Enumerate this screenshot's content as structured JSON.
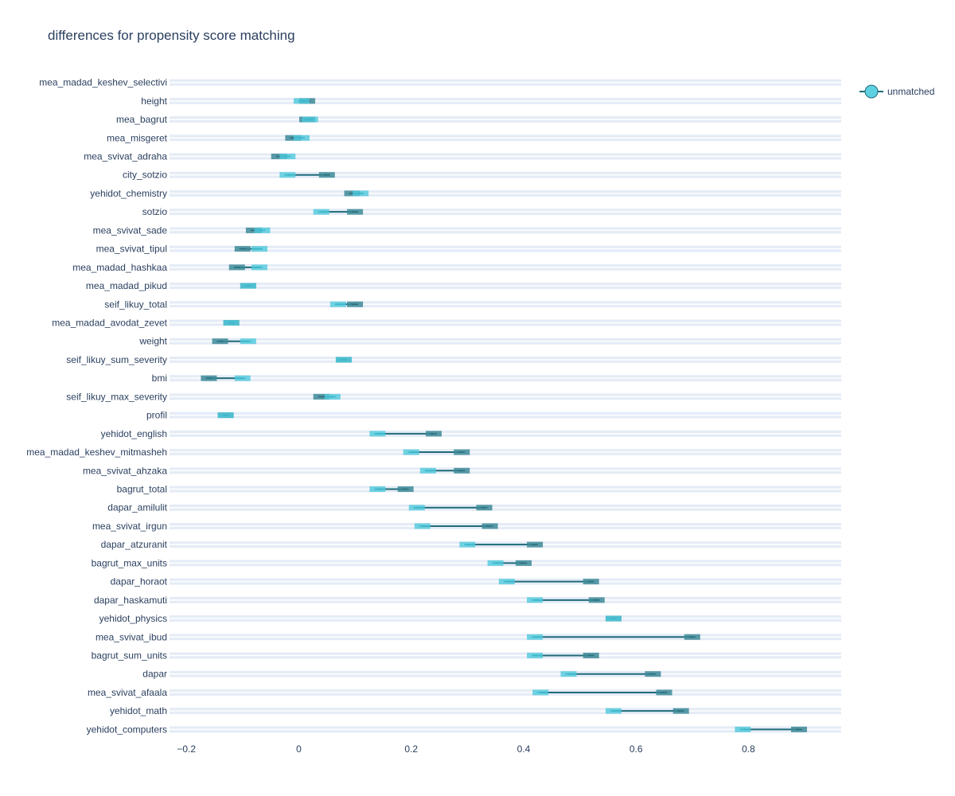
{
  "chart_data": {
    "type": "dumbbell",
    "title": "differences for propensity score matching",
    "xlabel": "",
    "ylabel": "",
    "xlim": [
      -0.23,
      0.965
    ],
    "xticks": [
      -0.2,
      0,
      0.2,
      0.4,
      0.6,
      0.8
    ],
    "xtick_labels": [
      "−0.2",
      "0",
      "0.2",
      "0.4",
      "0.6",
      "0.8"
    ],
    "grid": true,
    "legend": {
      "position": "top-right",
      "entries": [
        {
          "name": "unmatched",
          "color": "#5fd0e0"
        }
      ]
    },
    "colors": {
      "unmatched": "#4fc9dc",
      "matched": "#3d8a98",
      "connector": "#1f6b7a",
      "grid": "#e5ecf6"
    },
    "rows": [
      {
        "label": "mea_madad_keshev_selectivi",
        "unmatched": null,
        "matched": null
      },
      {
        "label": "height",
        "unmatched": 0.005,
        "matched": 0.015
      },
      {
        "label": "mea_bagrut",
        "unmatched": 0.02,
        "matched": 0.015
      },
      {
        "label": "mea_misgeret",
        "unmatched": 0.005,
        "matched": -0.01
      },
      {
        "label": "mea_svivat_adraha",
        "unmatched": -0.02,
        "matched": -0.035
      },
      {
        "label": "city_sotzio",
        "unmatched": -0.02,
        "matched": 0.05
      },
      {
        "label": "yehidot_chemistry",
        "unmatched": 0.11,
        "matched": 0.095
      },
      {
        "label": "sotzio",
        "unmatched": 0.04,
        "matched": 0.1
      },
      {
        "label": "mea_svivat_sade",
        "unmatched": -0.065,
        "matched": -0.08
      },
      {
        "label": "mea_svivat_tipul",
        "unmatched": -0.07,
        "matched": -0.1
      },
      {
        "label": "mea_madad_hashkaa",
        "unmatched": -0.07,
        "matched": -0.11
      },
      {
        "label": "mea_madad_pikud",
        "unmatched": -0.09,
        "matched": -0.09
      },
      {
        "label": "seif_likuy_total",
        "unmatched": 0.07,
        "matched": 0.1
      },
      {
        "label": "mea_madad_avodat_zevet",
        "unmatched": -0.12,
        "matched": -0.12
      },
      {
        "label": "weight",
        "unmatched": -0.09,
        "matched": -0.14
      },
      {
        "label": "seif_likuy_sum_severity",
        "unmatched": 0.08,
        "matched": 0.08
      },
      {
        "label": "bmi",
        "unmatched": -0.1,
        "matched": -0.16
      },
      {
        "label": "seif_likuy_max_severity",
        "unmatched": 0.06,
        "matched": 0.04
      },
      {
        "label": "profil",
        "unmatched": -0.13,
        "matched": -0.13
      },
      {
        "label": "yehidot_english",
        "unmatched": 0.14,
        "matched": 0.24
      },
      {
        "label": "mea_madad_keshev_mitmasheh",
        "unmatched": 0.2,
        "matched": 0.29
      },
      {
        "label": "mea_svivat_ahzaka",
        "unmatched": 0.23,
        "matched": 0.29
      },
      {
        "label": "bagrut_total",
        "unmatched": 0.14,
        "matched": 0.19
      },
      {
        "label": "dapar_amilulit",
        "unmatched": 0.21,
        "matched": 0.33
      },
      {
        "label": "mea_svivat_irgun",
        "unmatched": 0.22,
        "matched": 0.34
      },
      {
        "label": "dapar_atzuranit",
        "unmatched": 0.3,
        "matched": 0.42
      },
      {
        "label": "bagrut_max_units",
        "unmatched": 0.35,
        "matched": 0.4
      },
      {
        "label": "dapar_horaot",
        "unmatched": 0.37,
        "matched": 0.52
      },
      {
        "label": "dapar_haskamuti",
        "unmatched": 0.42,
        "matched": 0.53
      },
      {
        "label": "yehidot_physics",
        "unmatched": 0.56,
        "matched": 0.56
      },
      {
        "label": "mea_svivat_ibud",
        "unmatched": 0.42,
        "matched": 0.7
      },
      {
        "label": "bagrut_sum_units",
        "unmatched": 0.42,
        "matched": 0.52
      },
      {
        "label": "dapar",
        "unmatched": 0.48,
        "matched": 0.63
      },
      {
        "label": "mea_svivat_afaala",
        "unmatched": 0.43,
        "matched": 0.65
      },
      {
        "label": "yehidot_math",
        "unmatched": 0.56,
        "matched": 0.68
      },
      {
        "label": "yehidot_computers",
        "unmatched": 0.79,
        "matched": 0.89
      }
    ]
  }
}
